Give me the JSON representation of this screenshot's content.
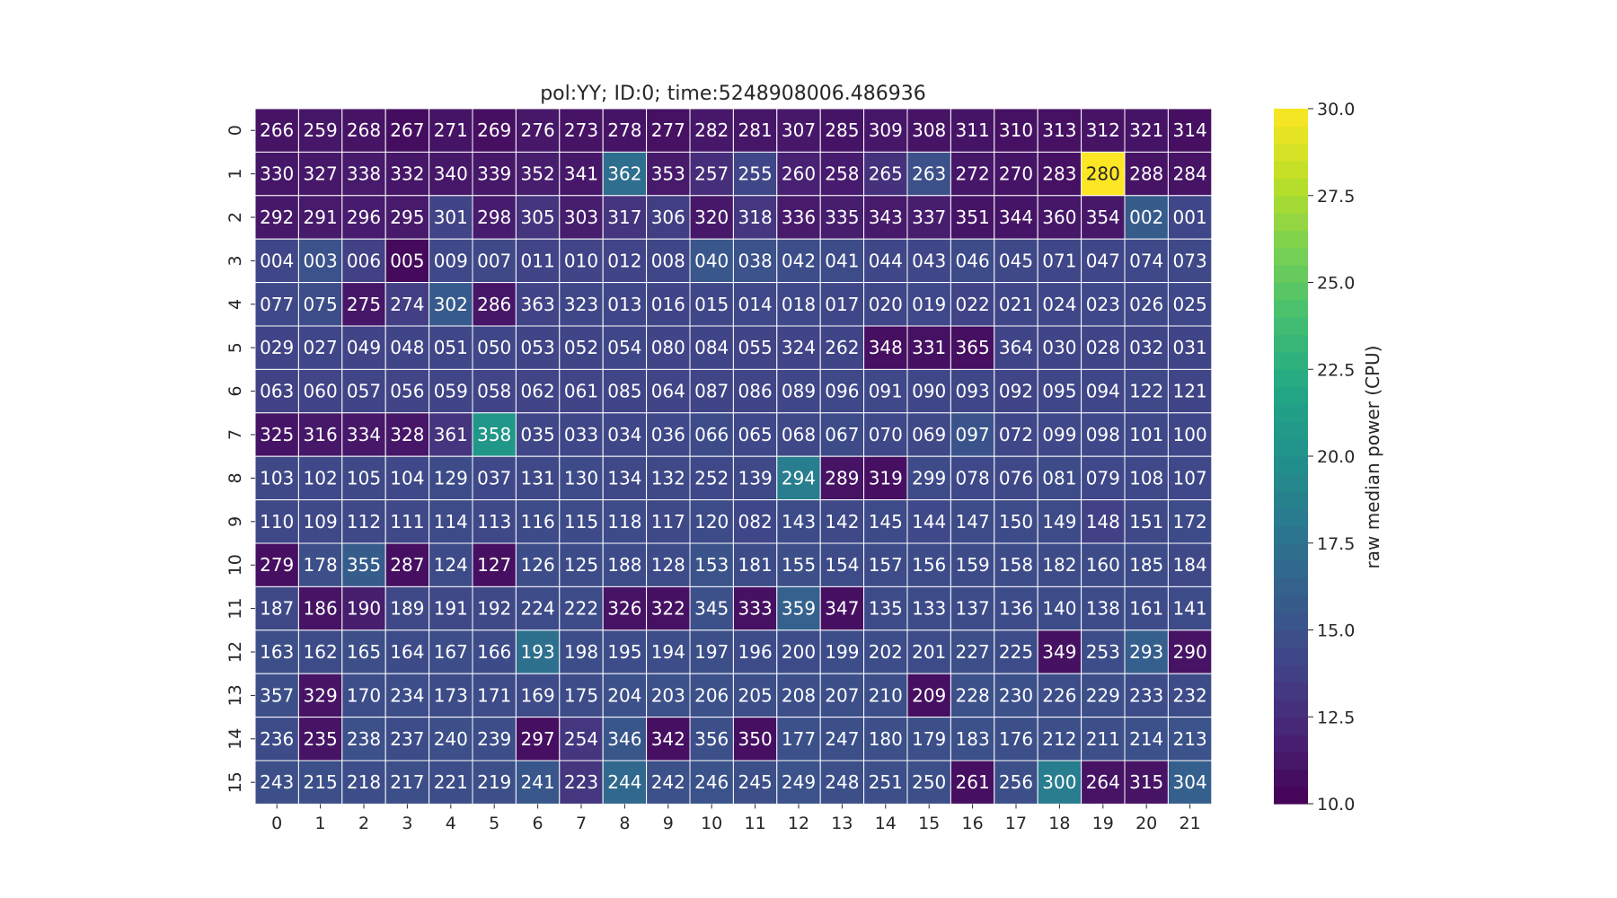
{
  "chart_data": {
    "type": "heatmap",
    "title": "pol:YY; ID:0; time:5248908006.486936",
    "xlabel": "",
    "ylabel": "",
    "x_categories": [
      "0",
      "1",
      "2",
      "3",
      "4",
      "5",
      "6",
      "7",
      "8",
      "9",
      "10",
      "11",
      "12",
      "13",
      "14",
      "15",
      "16",
      "17",
      "18",
      "19",
      "20",
      "21"
    ],
    "y_categories": [
      "0",
      "1",
      "2",
      "3",
      "4",
      "5",
      "6",
      "7",
      "8",
      "9",
      "10",
      "11",
      "12",
      "13",
      "14",
      "15"
    ],
    "colorbar": {
      "label": "raw median power (CPU)",
      "range": [
        10.0,
        30.0
      ],
      "ticks": [
        "10.0",
        "12.5",
        "15.0",
        "17.5",
        "20.0",
        "22.5",
        "25.0",
        "27.5",
        "30.0"
      ],
      "colormap": "viridis"
    },
    "annotations": [
      [
        "266",
        "259",
        "268",
        "267",
        "271",
        "269",
        "276",
        "273",
        "278",
        "277",
        "282",
        "281",
        "307",
        "285",
        "309",
        "308",
        "311",
        "310",
        "313",
        "312",
        "321",
        "314"
      ],
      [
        "330",
        "327",
        "338",
        "332",
        "340",
        "339",
        "352",
        "341",
        "362",
        "353",
        "257",
        "255",
        "260",
        "258",
        "265",
        "263",
        "272",
        "270",
        "283",
        "280",
        "288",
        "284"
      ],
      [
        "292",
        "291",
        "296",
        "295",
        "301",
        "298",
        "305",
        "303",
        "317",
        "306",
        "320",
        "318",
        "336",
        "335",
        "343",
        "337",
        "351",
        "344",
        "360",
        "354",
        "002",
        "001"
      ],
      [
        "004",
        "003",
        "006",
        "005",
        "009",
        "007",
        "011",
        "010",
        "012",
        "008",
        "040",
        "038",
        "042",
        "041",
        "044",
        "043",
        "046",
        "045",
        "071",
        "047",
        "074",
        "073"
      ],
      [
        "077",
        "075",
        "275",
        "274",
        "302",
        "286",
        "363",
        "323",
        "013",
        "016",
        "015",
        "014",
        "018",
        "017",
        "020",
        "019",
        "022",
        "021",
        "024",
        "023",
        "026",
        "025"
      ],
      [
        "029",
        "027",
        "049",
        "048",
        "051",
        "050",
        "053",
        "052",
        "054",
        "080",
        "084",
        "055",
        "324",
        "262",
        "348",
        "331",
        "365",
        "364",
        "030",
        "028",
        "032",
        "031"
      ],
      [
        "063",
        "060",
        "057",
        "056",
        "059",
        "058",
        "062",
        "061",
        "085",
        "064",
        "087",
        "086",
        "089",
        "096",
        "091",
        "090",
        "093",
        "092",
        "095",
        "094",
        "122",
        "121"
      ],
      [
        "325",
        "316",
        "334",
        "328",
        "361",
        "358",
        "035",
        "033",
        "034",
        "036",
        "066",
        "065",
        "068",
        "067",
        "070",
        "069",
        "097",
        "072",
        "099",
        "098",
        "101",
        "100"
      ],
      [
        "103",
        "102",
        "105",
        "104",
        "129",
        "037",
        "131",
        "130",
        "134",
        "132",
        "252",
        "139",
        "294",
        "289",
        "319",
        "299",
        "078",
        "076",
        "081",
        "079",
        "108",
        "107"
      ],
      [
        "110",
        "109",
        "112",
        "111",
        "114",
        "113",
        "116",
        "115",
        "118",
        "117",
        "120",
        "082",
        "143",
        "142",
        "145",
        "144",
        "147",
        "150",
        "149",
        "148",
        "151",
        "172"
      ],
      [
        "279",
        "178",
        "355",
        "287",
        "124",
        "127",
        "126",
        "125",
        "188",
        "128",
        "153",
        "181",
        "155",
        "154",
        "157",
        "156",
        "159",
        "158",
        "182",
        "160",
        "185",
        "184"
      ],
      [
        "187",
        "186",
        "190",
        "189",
        "191",
        "192",
        "224",
        "222",
        "326",
        "322",
        "345",
        "333",
        "359",
        "347",
        "135",
        "133",
        "137",
        "136",
        "140",
        "138",
        "161",
        "141"
      ],
      [
        "163",
        "162",
        "165",
        "164",
        "167",
        "166",
        "193",
        "198",
        "195",
        "194",
        "197",
        "196",
        "200",
        "199",
        "202",
        "201",
        "227",
        "225",
        "349",
        "253",
        "293",
        "290"
      ],
      [
        "357",
        "329",
        "170",
        "234",
        "173",
        "171",
        "169",
        "175",
        "204",
        "203",
        "206",
        "205",
        "208",
        "207",
        "210",
        "209",
        "228",
        "230",
        "226",
        "229",
        "233",
        "232"
      ],
      [
        "236",
        "235",
        "238",
        "237",
        "240",
        "239",
        "297",
        "254",
        "346",
        "342",
        "356",
        "350",
        "177",
        "247",
        "180",
        "179",
        "183",
        "176",
        "212",
        "211",
        "214",
        "213"
      ],
      [
        "243",
        "215",
        "218",
        "217",
        "221",
        "219",
        "241",
        "223",
        "244",
        "242",
        "246",
        "245",
        "249",
        "248",
        "251",
        "250",
        "261",
        "256",
        "300",
        "264",
        "315",
        "304"
      ]
    ],
    "values": [
      [
        11.0,
        11.2,
        11.0,
        10.7,
        11.1,
        10.8,
        11.3,
        11.0,
        11.1,
        10.9,
        11.3,
        11.2,
        11.3,
        11.1,
        11.2,
        11.0,
        11.1,
        10.9,
        10.9,
        11.0,
        11.1,
        10.8
      ],
      [
        11.2,
        11.3,
        11.4,
        11.2,
        11.3,
        11.3,
        11.6,
        11.3,
        17.2,
        11.4,
        12.6,
        14.2,
        11.8,
        11.5,
        12.8,
        14.9,
        11.2,
        11.1,
        10.9,
        30.0,
        11.0,
        11.0
      ],
      [
        11.3,
        11.4,
        11.5,
        11.4,
        14.0,
        11.5,
        13.0,
        11.6,
        13.0,
        13.6,
        11.3,
        13.2,
        11.4,
        11.6,
        11.4,
        11.6,
        11.1,
        11.1,
        11.2,
        11.3,
        15.8,
        14.2
      ],
      [
        14.2,
        15.0,
        13.8,
        10.5,
        14.3,
        14.4,
        14.0,
        14.0,
        14.0,
        14.2,
        15.4,
        15.0,
        14.7,
        14.5,
        14.2,
        14.2,
        14.5,
        14.4,
        14.2,
        14.2,
        14.3,
        14.4
      ],
      [
        14.3,
        14.7,
        11.2,
        13.7,
        15.6,
        11.2,
        14.0,
        14.2,
        14.2,
        14.1,
        14.2,
        14.3,
        14.3,
        14.2,
        14.2,
        14.3,
        14.0,
        14.2,
        14.2,
        14.3,
        14.3,
        14.3
      ],
      [
        14.0,
        14.2,
        14.0,
        14.1,
        14.2,
        14.2,
        14.1,
        14.1,
        14.2,
        14.0,
        14.1,
        14.0,
        14.0,
        14.1,
        10.8,
        10.9,
        10.8,
        14.1,
        14.1,
        14.1,
        14.1,
        14.1
      ],
      [
        13.9,
        14.0,
        14.1,
        14.0,
        14.1,
        14.0,
        14.0,
        14.0,
        14.1,
        14.0,
        14.1,
        14.1,
        14.2,
        14.3,
        14.3,
        14.2,
        14.2,
        14.1,
        14.2,
        14.2,
        14.3,
        14.1
      ],
      [
        11.1,
        11.3,
        11.3,
        11.2,
        13.0,
        20.5,
        14.2,
        14.2,
        14.2,
        14.3,
        14.6,
        14.3,
        14.4,
        14.5,
        14.3,
        14.4,
        15.2,
        14.2,
        14.3,
        14.3,
        14.3,
        14.2
      ],
      [
        14.4,
        14.3,
        14.4,
        14.3,
        14.6,
        14.3,
        14.4,
        14.5,
        14.4,
        14.4,
        14.3,
        14.4,
        18.5,
        11.0,
        10.8,
        14.5,
        14.3,
        14.4,
        14.5,
        14.3,
        14.3,
        14.3
      ],
      [
        14.4,
        14.4,
        14.4,
        14.4,
        14.5,
        14.4,
        14.5,
        14.5,
        14.5,
        14.4,
        14.6,
        14.2,
        14.6,
        14.4,
        14.5,
        14.3,
        14.6,
        14.5,
        14.5,
        13.8,
        14.4,
        14.5
      ],
      [
        10.8,
        14.8,
        15.8,
        10.8,
        14.5,
        10.8,
        14.7,
        14.6,
        14.6,
        14.6,
        15.1,
        14.6,
        14.8,
        14.6,
        14.6,
        14.6,
        14.6,
        14.6,
        14.6,
        14.6,
        14.6,
        14.4
      ],
      [
        14.4,
        11.0,
        11.6,
        14.4,
        14.4,
        14.4,
        14.6,
        14.5,
        11.0,
        10.9,
        14.9,
        10.9,
        16.2,
        10.8,
        14.5,
        14.6,
        14.6,
        14.6,
        14.6,
        14.6,
        14.5,
        14.5
      ],
      [
        14.8,
        14.6,
        14.8,
        14.5,
        14.7,
        14.5,
        17.4,
        14.7,
        14.7,
        14.7,
        14.8,
        14.6,
        14.6,
        14.7,
        14.7,
        14.6,
        14.8,
        14.6,
        10.9,
        14.7,
        16.0,
        11.0
      ],
      [
        14.8,
        11.0,
        14.7,
        14.7,
        14.6,
        14.6,
        14.5,
        14.6,
        14.9,
        14.9,
        14.9,
        14.8,
        14.8,
        14.8,
        14.8,
        10.8,
        14.9,
        14.9,
        14.7,
        14.8,
        14.6,
        14.6
      ],
      [
        14.6,
        11.0,
        14.9,
        14.6,
        14.8,
        14.7,
        10.8,
        13.2,
        15.3,
        10.8,
        14.8,
        10.8,
        14.9,
        14.8,
        14.8,
        14.8,
        14.9,
        14.8,
        14.8,
        14.8,
        14.9,
        15.0
      ],
      [
        14.8,
        14.8,
        14.7,
        14.8,
        14.7,
        14.8,
        15.4,
        13.2,
        16.7,
        14.9,
        15.1,
        14.8,
        15.0,
        14.8,
        14.8,
        14.8,
        10.8,
        14.8,
        18.4,
        11.0,
        11.0,
        16.0
      ]
    ]
  }
}
